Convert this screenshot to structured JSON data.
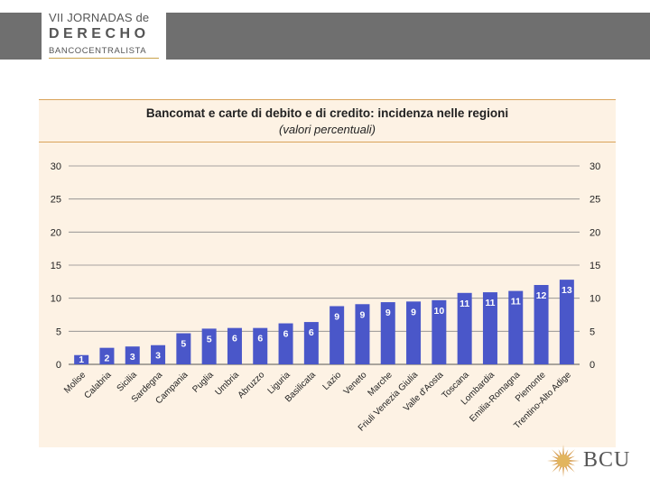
{
  "header": {
    "line1": "VII JORNADAS de",
    "line2": "DERECHO",
    "line3": "BANCOCENTRALISTA"
  },
  "footer": {
    "logo_text": "BCU"
  },
  "colors": {
    "bar": "#4a57c9",
    "panel": "#fdf2e4",
    "band": "#6f6f6f",
    "accent": "#d9a35a"
  },
  "chart_data": {
    "type": "bar",
    "title": "Bancomat e carte di debito e di credito: incidenza nelle regioni",
    "subtitle": "(valori percentuali)",
    "categories": [
      "Molise",
      "Calabria",
      "Sicilia",
      "Sardegna",
      "Campania",
      "Puglia",
      "Umbria",
      "Abruzzo",
      "Liguria",
      "Basilicata",
      "Lazio",
      "Veneto",
      "Marche",
      "Friuli Venezia Giulia",
      "Valle d'Aosta",
      "Toscana",
      "Lombardia",
      "Emilia-Romagna",
      "Piemonte",
      "Trentino-Alto Adige"
    ],
    "values": [
      1.4,
      2.5,
      2.7,
      2.9,
      4.7,
      5.4,
      5.5,
      5.5,
      6.2,
      6.4,
      8.8,
      9.1,
      9.4,
      9.5,
      9.7,
      10.8,
      10.9,
      11.1,
      12.0,
      12.8
    ],
    "labels": [
      "1",
      "2",
      "3",
      "3",
      "5",
      "5",
      "6",
      "6",
      "6",
      "6",
      "9",
      "9",
      "9",
      "9",
      "10",
      "11",
      "11",
      "11",
      "12",
      "13"
    ],
    "ylim": [
      0,
      30
    ],
    "yticks": [
      0,
      5,
      10,
      15,
      20,
      25,
      30
    ],
    "grid": true,
    "secondary_axis": true
  }
}
